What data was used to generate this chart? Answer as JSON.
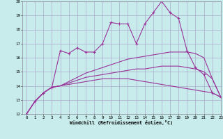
{
  "xlabel": "Windchill (Refroidissement éolien,°C)",
  "background_color": "#c8ecec",
  "grid_color": "#aaaacc",
  "line_color": "#993399",
  "xlim": [
    -0.5,
    23
  ],
  "ylim": [
    12,
    20
  ],
  "xticks": [
    0,
    1,
    2,
    3,
    4,
    5,
    6,
    7,
    8,
    9,
    10,
    11,
    12,
    13,
    14,
    15,
    16,
    17,
    18,
    19,
    20,
    21,
    22,
    23
  ],
  "yticks": [
    12,
    13,
    14,
    15,
    16,
    17,
    18,
    19,
    20
  ],
  "series": [
    [
      12.0,
      12.9,
      13.5,
      13.9,
      16.5,
      16.3,
      16.7,
      16.4,
      16.4,
      17.0,
      18.5,
      18.4,
      18.4,
      17.0,
      18.4,
      19.2,
      20.0,
      19.2,
      18.8,
      16.5,
      15.3,
      14.8,
      13.5,
      13.2
    ],
    [
      12.0,
      12.9,
      13.5,
      13.9,
      14.0,
      14.1,
      14.2,
      14.3,
      14.4,
      14.5,
      14.5,
      14.5,
      14.5,
      14.4,
      14.3,
      14.2,
      14.1,
      14.0,
      13.9,
      13.8,
      13.7,
      13.6,
      13.5,
      13.2
    ],
    [
      12.0,
      12.9,
      13.5,
      13.9,
      14.0,
      14.2,
      14.4,
      14.6,
      14.7,
      14.8,
      14.9,
      15.0,
      15.1,
      15.2,
      15.2,
      15.3,
      15.4,
      15.4,
      15.4,
      15.3,
      15.2,
      15.0,
      14.5,
      13.2
    ],
    [
      12.0,
      12.9,
      13.5,
      13.9,
      14.0,
      14.3,
      14.6,
      14.9,
      15.1,
      15.3,
      15.5,
      15.7,
      15.9,
      16.0,
      16.1,
      16.2,
      16.3,
      16.4,
      16.4,
      16.4,
      16.3,
      16.0,
      14.5,
      13.2
    ]
  ]
}
